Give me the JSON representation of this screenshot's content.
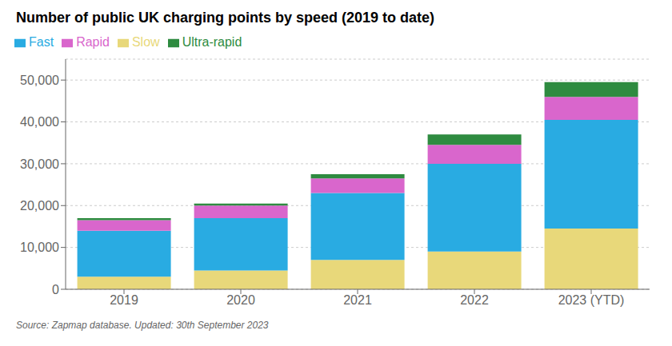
{
  "chart_data": {
    "type": "bar",
    "title": "Number of public UK charging points by speed (2019 to date)",
    "categories": [
      "2019",
      "2020",
      "2021",
      "2022",
      "2023 (YTD)"
    ],
    "series": [
      {
        "name": "Slow",
        "color": "#e8d87a",
        "values": [
          3000,
          4500,
          7000,
          9000,
          14500
        ]
      },
      {
        "name": "Fast",
        "color": "#29abe2",
        "values": [
          11000,
          12500,
          16000,
          21000,
          26000
        ]
      },
      {
        "name": "Rapid",
        "color": "#d966cc",
        "values": [
          2500,
          3000,
          3500,
          4500,
          5500
        ]
      },
      {
        "name": "Ultra-rapid",
        "color": "#2e8b40",
        "values": [
          500,
          500,
          1000,
          2500,
          3500
        ]
      }
    ],
    "stacked": true,
    "ylim": [
      0,
      55000
    ],
    "yticks": [
      0,
      {
        "value": 10000,
        "label": "10,000"
      },
      {
        "value": 20000,
        "label": "20,000"
      },
      {
        "value": 30000,
        "label": "30,000"
      },
      {
        "value": 40000,
        "label": "40,000"
      },
      {
        "value": 50000,
        "label": "50,000"
      }
    ],
    "grid": true,
    "legend": "top",
    "annotations": [
      "Source: Zapmap database. Updated: 30th September 2023"
    ]
  }
}
